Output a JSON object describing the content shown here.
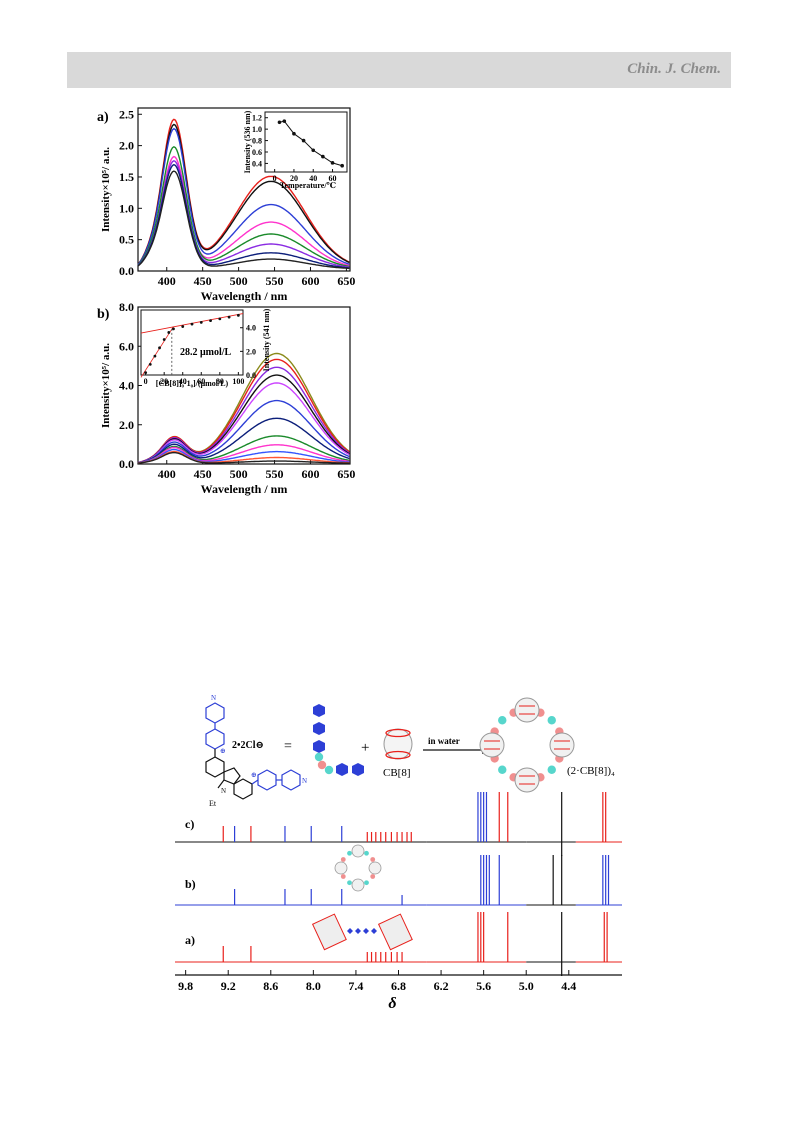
{
  "header": {
    "journal": "Chin. J. Chem."
  },
  "panels": {
    "a_label": "a)",
    "b_label": "b)"
  },
  "chart_data": [
    {
      "id": "spectra-a",
      "type": "line",
      "xlabel": "Wavelength / nm",
      "ylabel": "Intensity×10⁵/ a.u.",
      "xlim": [
        360,
        655
      ],
      "ylim": [
        0,
        2.6
      ],
      "xticks": [
        400,
        450,
        500,
        550,
        600,
        650
      ],
      "yticks": [
        0.0,
        0.5,
        1.0,
        1.5,
        2.0,
        2.5
      ],
      "ytick_labels": [
        "0.0",
        "0.5",
        "1.0",
        "1.5",
        "2.0",
        "2.5"
      ],
      "grid": false,
      "series_style": [
        {
          "color": "#e8201b",
          "p1": 2.36,
          "p2": 1.48
        },
        {
          "color": "#111111",
          "p1": 2.28,
          "p2": 1.4
        },
        {
          "color": "#2d3fd6",
          "p1": 2.22,
          "p2": 1.03
        },
        {
          "color": "#ff33cc",
          "p1": 1.78,
          "p2": 0.75
        },
        {
          "color": "#1a8a2a",
          "p1": 1.94,
          "p2": 0.56
        },
        {
          "color": "#8a2be2",
          "p1": 1.72,
          "p2": 0.4
        },
        {
          "color": "#0b1e7a",
          "p1": 1.66,
          "p2": 0.26
        },
        {
          "color": "#222222",
          "p1": 1.56,
          "p2": 0.16
        }
      ],
      "inset": {
        "xlabel": "Temperature/℃",
        "ylabel": "Intensity (536 nm)",
        "xlim": [
          -10,
          75
        ],
        "ylim": [
          0.25,
          1.3
        ],
        "xticks": [
          0,
          20,
          40,
          60
        ],
        "yticks": [
          0.4,
          0.6,
          0.8,
          1.0,
          1.2
        ],
        "ytick_labels": [
          "0.4",
          "0.6",
          "0.8",
          "1.0",
          "1.2"
        ],
        "x": [
          5,
          10,
          20,
          30,
          40,
          50,
          60,
          70
        ],
        "y": [
          1.12,
          1.14,
          0.92,
          0.8,
          0.63,
          0.52,
          0.41,
          0.36
        ]
      }
    },
    {
      "id": "spectra-b",
      "type": "line",
      "xlabel": "Wavelength / nm",
      "ylabel": "Intensity×10⁵/ a.u.",
      "xlim": [
        360,
        655
      ],
      "ylim": [
        0,
        8.0
      ],
      "xticks": [
        400,
        450,
        500,
        550,
        600,
        650
      ],
      "yticks": [
        0.0,
        2.0,
        4.0,
        6.0,
        8.0
      ],
      "ytick_labels": [
        "0.0",
        "2.0",
        "4.0",
        "6.0",
        "8.0"
      ],
      "grid": false,
      "series_style": [
        {
          "color": "#8a8a1a",
          "p1": 1.3,
          "p2": 5.6
        },
        {
          "color": "#e8201b",
          "p1": 1.3,
          "p2": 5.3
        },
        {
          "color": "#8a2be2",
          "p1": 1.25,
          "p2": 4.9
        },
        {
          "color": "#111111",
          "p1": 1.2,
          "p2": 4.5
        },
        {
          "color": "#cc44ff",
          "p1": 1.15,
          "p2": 4.1
        },
        {
          "color": "#2d3fd6",
          "p1": 1.05,
          "p2": 3.2
        },
        {
          "color": "#0b1e7a",
          "p1": 0.95,
          "p2": 2.3
        },
        {
          "color": "#1a8a2a",
          "p1": 0.85,
          "p2": 1.4
        },
        {
          "color": "#ff33cc",
          "p1": 0.8,
          "p2": 0.95
        },
        {
          "color": "#3355ff",
          "p1": 0.7,
          "p2": 0.6
        },
        {
          "color": "#ff5533",
          "p1": 0.6,
          "p2": 0.3
        },
        {
          "color": "#222222",
          "p1": 0.55,
          "p2": 0.12
        }
      ],
      "inset": {
        "xlabel": "[CB[8]]₀·1₀]/(μmol/L)",
        "ylabel": "Intensity (541 nm)",
        "annotation": "28.2 μmol/L",
        "xlim": [
          -5,
          105
        ],
        "ylim": [
          0,
          5.5
        ],
        "xticks": [
          0,
          20,
          40,
          60,
          80,
          100
        ],
        "yticks": [
          0.0,
          2.0,
          4.0
        ],
        "ytick_labels": [
          "0.0",
          "2.0",
          "4.0"
        ],
        "x": [
          0,
          5,
          10,
          15,
          20,
          25,
          30,
          40,
          50,
          60,
          70,
          80,
          90,
          100
        ],
        "y": [
          0.2,
          0.9,
          1.6,
          2.3,
          3.0,
          3.6,
          3.9,
          4.1,
          4.3,
          4.45,
          4.6,
          4.75,
          4.9,
          5.05
        ]
      }
    },
    {
      "id": "nmr-spectrum",
      "type": "line",
      "xlabel": "δ",
      "xlim": [
        9.95,
        3.65
      ],
      "xticks": [
        9.8,
        9.2,
        8.6,
        8.0,
        7.4,
        6.8,
        6.2,
        5.6,
        5.0,
        4.4
      ],
      "xtick_labels": [
        "9.8",
        "9.2",
        "8.6",
        "8.0",
        "7.4",
        "6.8",
        "6.2",
        "5.6",
        "5.0",
        "4.4"
      ],
      "trace_labels": [
        "c)",
        "b)",
        "a)"
      ],
      "scheme": {
        "salt_label": "2•2Cl⊖",
        "equals": "=",
        "plus": "+",
        "cb8_label": "CB[8]",
        "arrow_label": "in water",
        "product_label": "(2·CB[8])₄",
        "substituent": "Et"
      },
      "traces": [
        {
          "label": "c)",
          "peaks_ppm": [
            9.27,
            9.11,
            8.88,
            8.4,
            8.03,
            7.6,
            7.24,
            7.18,
            7.12,
            7.05,
            6.98,
            6.9,
            6.82,
            6.75,
            6.68,
            6.62,
            5.68,
            5.64,
            5.6,
            5.56,
            5.38,
            5.26,
            4.5,
            3.92,
            3.88
          ]
        },
        {
          "label": "b)",
          "peaks_ppm": [
            9.11,
            8.4,
            8.03,
            7.6,
            6.75,
            5.64,
            5.6,
            5.56,
            5.52,
            5.38,
            4.62,
            4.5,
            3.92,
            3.88,
            3.84
          ]
        },
        {
          "label": "a)",
          "peaks_ppm": [
            9.27,
            8.88,
            7.24,
            7.18,
            7.12,
            7.05,
            6.98,
            6.9,
            6.82,
            6.75,
            5.68,
            5.64,
            5.6,
            5.26,
            4.5,
            3.9,
            3.86
          ]
        }
      ]
    }
  ]
}
